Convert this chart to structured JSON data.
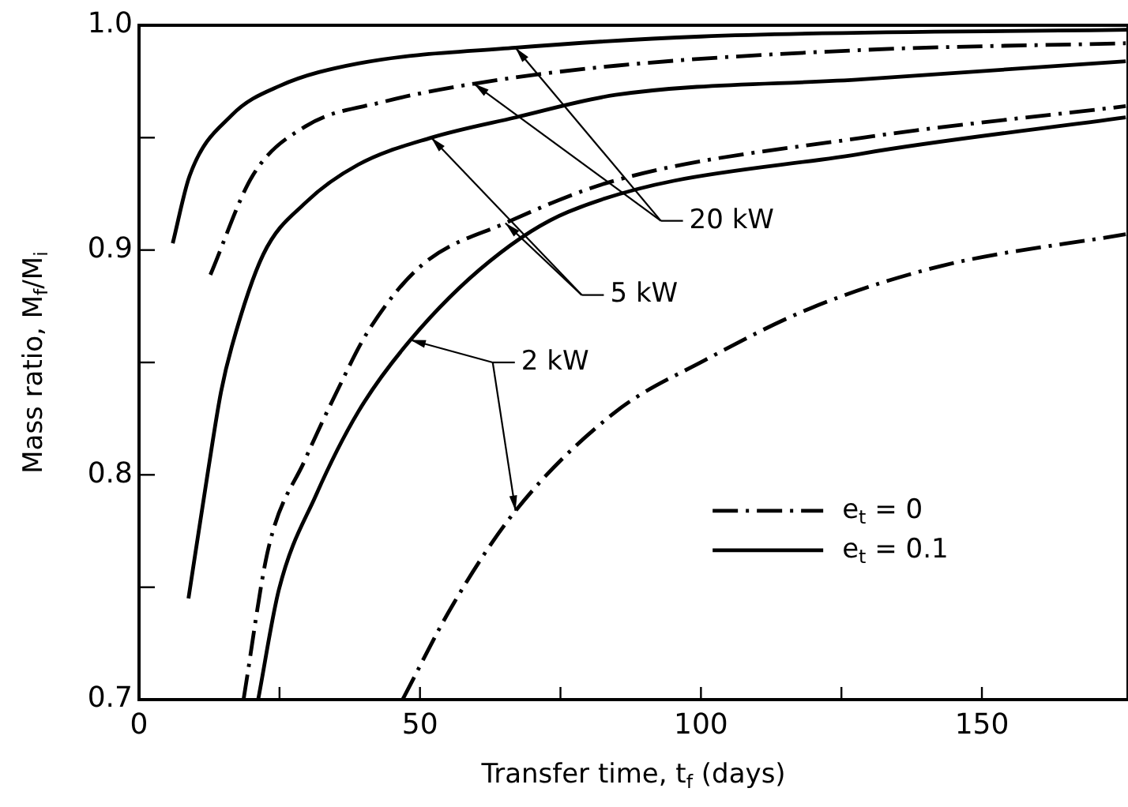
{
  "chart_data": {
    "type": "line",
    "xlabel": "Transfer time, t$_{f}$ (days)",
    "ylabel": "Mass ratio, M$_{f}$/M$_{i}$",
    "xlim": [
      0,
      176
    ],
    "ylim": [
      0.7,
      1.0
    ],
    "xticks": [
      0,
      {
        "value": 25,
        "label": null
      },
      50,
      {
        "value": 75,
        "label": null
      },
      100,
      {
        "value": 125,
        "label": null
      },
      150
    ],
    "yticks": [
      {
        "value": 0.7,
        "label": "0.7"
      },
      {
        "value": 0.75,
        "label": null
      },
      {
        "value": 0.8,
        "label": "0.8"
      },
      {
        "value": 0.85,
        "label": null
      },
      {
        "value": 0.9,
        "label": "0.9"
      },
      {
        "value": 0.95,
        "label": null
      },
      {
        "value": 1,
        "label": "1.0"
      }
    ],
    "grid": false,
    "legend": "right",
    "marker": "none",
    "series": [
      {
        "name": "e$_{t}$ = 0.1",
        "color": "#000000",
        "line_style": "solid",
        "x": [
          6,
          9,
          16.5,
          25,
          39,
          67,
          100,
          176
        ],
        "values": [
          0.903,
          0.933,
          0.96,
          0.973,
          0.983,
          0.99,
          0.995,
          0.998
        ]
      },
      {
        "name": "e$_{t}$ = 0",
        "color": "#000000",
        "line_style": "dashed",
        "x": [
          12.7,
          20.2,
          29.6,
          43.6,
          59.6,
          84.8,
          128.8,
          175.6
        ],
        "values": [
          0.889,
          0.933,
          0.955,
          0.966,
          0.974,
          0.982,
          0.989,
          0.992
        ]
      },
      {
        "color": "#000000",
        "line_style": "solid",
        "x": [
          8.8,
          12.3,
          14.6,
          16.5,
          22.1,
          29.6,
          39,
          52,
          67,
          84.8,
          128.8,
          175.6
        ],
        "values": [
          0.745,
          0.802,
          0.837,
          0.857,
          0.898,
          0.921,
          0.938,
          0.95,
          0.959,
          0.969,
          0.976,
          0.984
        ]
      },
      {
        "color": "#000000",
        "line_style": "dashed",
        "x": [
          18.6,
          23,
          29.6,
          35.2,
          40.8,
          50.2,
          65.2,
          84.8,
          128.8,
          175.6
        ],
        "values": [
          0.7,
          0.767,
          0.807,
          0.837,
          0.864,
          0.893,
          0.912,
          0.931,
          0.95,
          0.964
        ]
      },
      {
        "color": "#000000",
        "line_style": "solid",
        "x": [
          21.2,
          24.9,
          31.5,
          39,
          48.3,
          62.4,
          76.4,
          128.8,
          175.6
        ],
        "values": [
          0.7,
          0.749,
          0.791,
          0.828,
          0.86,
          0.895,
          0.917,
          0.943,
          0.959
        ]
      },
      {
        "color": "#000000",
        "line_style": "dashed",
        "x": [
          46.9,
          55.8,
          67,
          84.8,
          100.7,
          119.4,
          142.9,
          175.6
        ],
        "values": [
          0.7,
          0.742,
          0.784,
          0.828,
          0.851,
          0.874,
          0.893,
          0.907
        ]
      }
    ],
    "annotations": [
      {
        "text": "20 kW",
        "x": 67,
        "y": 0.99
      },
      {
        "text": "5 kW",
        "x": 52,
        "y": 0.95
      },
      {
        "text": "2 kW",
        "x": 48.3,
        "y": 0.86
      }
    ]
  }
}
